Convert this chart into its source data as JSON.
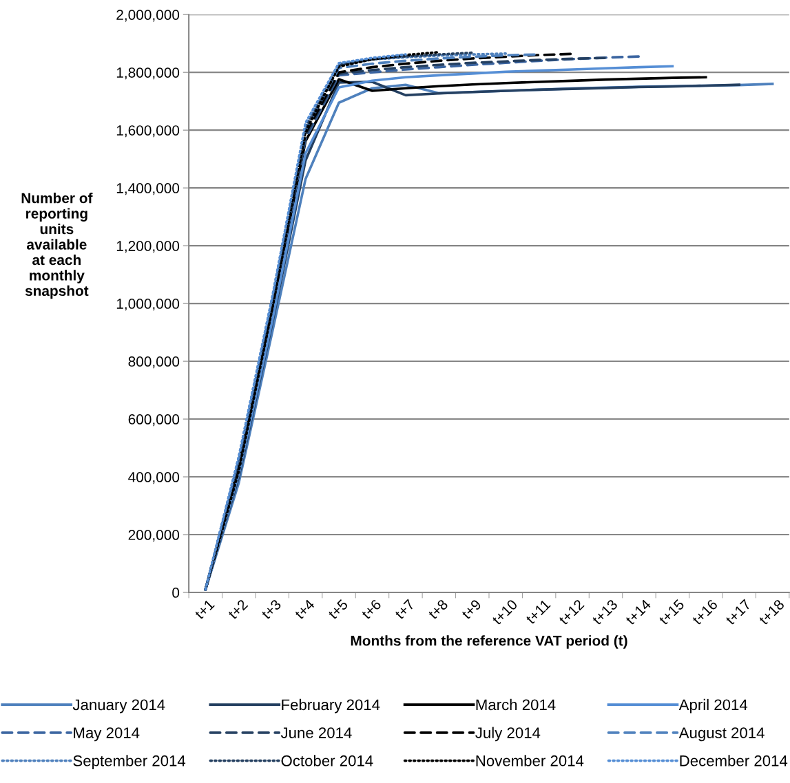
{
  "chart_data": {
    "type": "line",
    "xlabel": "Months from the reference VAT period (t)",
    "ylabel": "Number of\nreporting\nunits\navailable\nat each\nmonthly\nsnapshot",
    "categories": [
      "t+1",
      "t+2",
      "t+3",
      "t+4",
      "t+5",
      "t+6",
      "t+7",
      "t+8",
      "t+9",
      "t+10",
      "t+11",
      "t+12",
      "t+13",
      "t+14",
      "t+15",
      "t+16",
      "t+17",
      "t+18"
    ],
    "ylim": [
      0,
      2000000
    ],
    "yticks": [
      {
        "value": 0,
        "label": "0"
      },
      {
        "value": 200000,
        "label": "200,000"
      },
      {
        "value": 400000,
        "label": "400,000"
      },
      {
        "value": 600000,
        "label": "600,000"
      },
      {
        "value": 800000,
        "label": "800,000"
      },
      {
        "value": 1000000,
        "label": "1,000,000"
      },
      {
        "value": 1200000,
        "label": "1,200,000"
      },
      {
        "value": 1400000,
        "label": "1,400,000"
      },
      {
        "value": 1600000,
        "label": "1,600,000"
      },
      {
        "value": 1800000,
        "label": "1,800,000"
      },
      {
        "value": 2000000,
        "label": "2,000,000"
      }
    ],
    "grid": "y",
    "legend": "bottom",
    "marker": "none",
    "series": [
      {
        "name": "January 2014",
        "color": "#4f81bd",
        "line_style": "solid",
        "values": [
          10000,
          380000,
          900000,
          1431000,
          1695000,
          1745000,
          1757000,
          1728000,
          1732000,
          1736000,
          1740000,
          1744000,
          1747000,
          1750000,
          1752000,
          1754000,
          1756000,
          1760000
        ]
      },
      {
        "name": "February 2014",
        "color": "#254061",
        "line_style": "solid",
        "values": [
          10000,
          400000,
          930000,
          1495000,
          1765000,
          1767000,
          1721000,
          1727000,
          1732000,
          1736000,
          1740000,
          1743000,
          1746000,
          1749000,
          1751000,
          1754000,
          1757000,
          null
        ]
      },
      {
        "name": "March 2014",
        "color": "#000000",
        "line_style": "solid",
        "values": [
          10000,
          440000,
          980000,
          1562000,
          1776000,
          1736000,
          1745000,
          1752000,
          1758000,
          1763000,
          1767000,
          1771000,
          1775000,
          1778000,
          1781000,
          1783000,
          null,
          null
        ]
      },
      {
        "name": "April 2014",
        "color": "#558ed5",
        "line_style": "solid",
        "values": [
          10000,
          410000,
          940000,
          1520000,
          1748000,
          1771000,
          1783000,
          1790000,
          1796000,
          1802000,
          1806000,
          1810000,
          1814000,
          1818000,
          1821000,
          null,
          null,
          null
        ]
      },
      {
        "name": "May 2014",
        "color": "#3a64a0",
        "line_style": "dashed",
        "values": [
          10000,
          450000,
          990000,
          1570000,
          1790000,
          1800000,
          1810000,
          1818000,
          1826000,
          1833000,
          1840000,
          1846000,
          1851000,
          1855000,
          null,
          null,
          null,
          null
        ]
      },
      {
        "name": "June 2014",
        "color": "#254061",
        "line_style": "dashed",
        "values": [
          10000,
          450000,
          1000000,
          1580000,
          1795000,
          1808000,
          1818000,
          1826000,
          1833000,
          1838000,
          1843000,
          1847000,
          1850000,
          null,
          null,
          null,
          null,
          null
        ]
      },
      {
        "name": "July 2014",
        "color": "#000000",
        "line_style": "dashed",
        "values": [
          10000,
          440000,
          1000000,
          1590000,
          1800000,
          1818000,
          1830000,
          1840000,
          1848000,
          1854000,
          1860000,
          1864000,
          null,
          null,
          null,
          null,
          null,
          null
        ]
      },
      {
        "name": "August 2014",
        "color": "#4f81bd",
        "line_style": "dashed",
        "values": [
          10000,
          460000,
          1010000,
          1600000,
          1815000,
          1830000,
          1840000,
          1848000,
          1854000,
          1859000,
          1862000,
          null,
          null,
          null,
          null,
          null,
          null,
          null
        ]
      },
      {
        "name": "September 2014",
        "color": "#4f81bd",
        "line_style": "dotted",
        "values": [
          10000,
          470000,
          1020000,
          1620000,
          1830000,
          1845000,
          1852000,
          1858000,
          1862000,
          1865000,
          null,
          null,
          null,
          null,
          null,
          null,
          null,
          null
        ]
      },
      {
        "name": "October 2014",
        "color": "#254061",
        "line_style": "dotted",
        "values": [
          10000,
          460000,
          1010000,
          1610000,
          1825000,
          1845000,
          1855000,
          1862000,
          1868000,
          null,
          null,
          null,
          null,
          null,
          null,
          null,
          null,
          null
        ]
      },
      {
        "name": "November 2014",
        "color": "#000000",
        "line_style": "dotted",
        "values": [
          10000,
          420000,
          980000,
          1595000,
          1820000,
          1845000,
          1860000,
          1870000,
          null,
          null,
          null,
          null,
          null,
          null,
          null,
          null,
          null,
          null
        ]
      },
      {
        "name": "December 2014",
        "color": "#558ed5",
        "line_style": "dotted",
        "values": [
          10000,
          470000,
          1020000,
          1625000,
          1832000,
          1850000,
          1862000,
          null,
          null,
          null,
          null,
          null,
          null,
          null,
          null,
          null,
          null,
          null
        ]
      }
    ]
  }
}
